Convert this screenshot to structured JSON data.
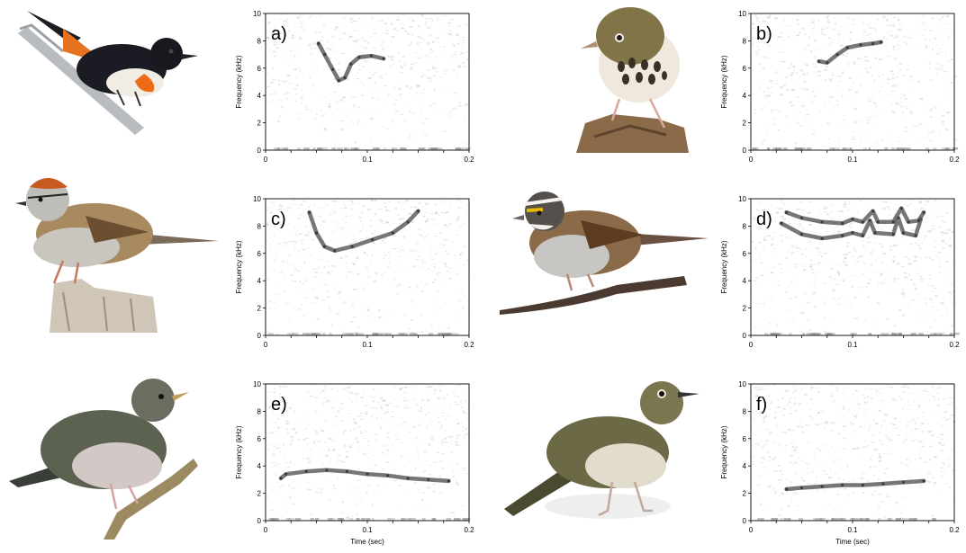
{
  "figure": {
    "panels": [
      {
        "letter": "a)",
        "bird": "american-redstart",
        "x_label": "",
        "y_label": "Frequency (kHz)"
      },
      {
        "letter": "b)",
        "bird": "ovenbird",
        "x_label": "",
        "y_label": "Frequency (kHz)"
      },
      {
        "letter": "c)",
        "bird": "chipping-sparrow",
        "x_label": "",
        "y_label": "Frequency (kHz)"
      },
      {
        "letter": "d)",
        "bird": "white-throated-sparrow",
        "x_label": "",
        "y_label": "Frequency (kHz)"
      },
      {
        "letter": "e)",
        "bird": "gray-cheeked-thrush",
        "x_label": "Time (sec)",
        "y_label": "Frequency (kHz)"
      },
      {
        "letter": "f)",
        "bird": "swainsons-thrush",
        "x_label": "Time (sec)",
        "y_label": "Frequency (kHz)"
      }
    ],
    "colors": {
      "background": "#ffffff",
      "trace": "#555555",
      "noise": "#bdbdbd"
    }
  },
  "chart_data": [
    {
      "type": "scatter",
      "title": "a)",
      "xlabel": "",
      "ylabel": "Frequency (kHz)",
      "xlim": [
        0,
        0.2
      ],
      "ylim": [
        0,
        10
      ],
      "x_ticks": [
        "0",
        "0.1",
        "0.2"
      ],
      "y_ticks": [
        "0",
        "2",
        "4",
        "6",
        "8",
        "10"
      ],
      "series": [
        {
          "values": [
            [
              0.052,
              7.8
            ],
            [
              0.058,
              7.0
            ],
            [
              0.066,
              5.9
            ],
            [
              0.072,
              5.1
            ],
            [
              0.078,
              5.3
            ],
            [
              0.084,
              6.3
            ],
            [
              0.092,
              6.8
            ],
            [
              0.104,
              6.9
            ],
            [
              0.116,
              6.7
            ]
          ]
        }
      ]
    },
    {
      "type": "scatter",
      "title": "b)",
      "xlabel": "",
      "ylabel": "Frequency (kHz)",
      "xlim": [
        0,
        0.2
      ],
      "ylim": [
        0,
        10
      ],
      "x_ticks": [
        "0",
        "0.1",
        "0.2"
      ],
      "y_ticks": [
        "0",
        "2",
        "4",
        "6",
        "8",
        "10"
      ],
      "series": [
        {
          "values": [
            [
              0.067,
              6.5
            ],
            [
              0.075,
              6.4
            ],
            [
              0.085,
              7.0
            ],
            [
              0.095,
              7.5
            ],
            [
              0.108,
              7.7
            ],
            [
              0.12,
              7.8
            ],
            [
              0.128,
              7.9
            ]
          ]
        }
      ]
    },
    {
      "type": "scatter",
      "title": "c)",
      "xlabel": "",
      "ylabel": "Frequency (kHz)",
      "xlim": [
        0,
        0.2
      ],
      "ylim": [
        0,
        10
      ],
      "x_ticks": [
        "0",
        "0.1",
        "0.2"
      ],
      "y_ticks": [
        "0",
        "2",
        "4",
        "6",
        "8",
        "10"
      ],
      "series": [
        {
          "values": [
            [
              0.043,
              9.0
            ],
            [
              0.05,
              7.5
            ],
            [
              0.058,
              6.5
            ],
            [
              0.068,
              6.2
            ],
            [
              0.085,
              6.5
            ],
            [
              0.105,
              7.0
            ],
            [
              0.125,
              7.5
            ],
            [
              0.14,
              8.3
            ],
            [
              0.15,
              9.1
            ]
          ]
        }
      ]
    },
    {
      "type": "scatter",
      "title": "d)",
      "xlabel": "",
      "ylabel": "Frequency (kHz)",
      "xlim": [
        0,
        0.2
      ],
      "ylim": [
        0,
        10
      ],
      "x_ticks": [
        "0",
        "0.1",
        "0.2"
      ],
      "y_ticks": [
        "0",
        "2",
        "4",
        "6",
        "8",
        "10"
      ],
      "series": [
        {
          "values": [
            [
              0.03,
              8.2
            ],
            [
              0.05,
              7.4
            ],
            [
              0.07,
              7.1
            ],
            [
              0.09,
              7.3
            ],
            [
              0.1,
              7.5
            ],
            [
              0.11,
              7.3
            ],
            [
              0.117,
              8.4
            ],
            [
              0.122,
              7.5
            ],
            [
              0.14,
              7.4
            ],
            [
              0.145,
              8.6
            ],
            [
              0.15,
              7.5
            ],
            [
              0.162,
              7.3
            ],
            [
              0.167,
              8.5
            ]
          ]
        },
        {
          "values": [
            [
              0.035,
              9.0
            ],
            [
              0.05,
              8.6
            ],
            [
              0.07,
              8.3
            ],
            [
              0.09,
              8.2
            ],
            [
              0.1,
              8.5
            ],
            [
              0.11,
              8.3
            ],
            [
              0.12,
              9.1
            ],
            [
              0.125,
              8.3
            ],
            [
              0.14,
              8.3
            ],
            [
              0.148,
              9.3
            ],
            [
              0.155,
              8.3
            ],
            [
              0.165,
              8.4
            ],
            [
              0.17,
              9.0
            ]
          ]
        }
      ]
    },
    {
      "type": "scatter",
      "title": "e)",
      "xlabel": "Time (sec)",
      "ylabel": "Frequency (kHz)",
      "xlim": [
        0,
        0.2
      ],
      "ylim": [
        0,
        10
      ],
      "x_ticks": [
        "0",
        "0.1",
        "0.2"
      ],
      "y_ticks": [
        "0",
        "2",
        "4",
        "6",
        "8",
        "10"
      ],
      "series": [
        {
          "values": [
            [
              0.015,
              3.1
            ],
            [
              0.02,
              3.4
            ],
            [
              0.04,
              3.6
            ],
            [
              0.06,
              3.7
            ],
            [
              0.08,
              3.6
            ],
            [
              0.1,
              3.4
            ],
            [
              0.12,
              3.3
            ],
            [
              0.14,
              3.1
            ],
            [
              0.16,
              3.0
            ],
            [
              0.18,
              2.9
            ]
          ]
        }
      ]
    },
    {
      "type": "scatter",
      "title": "f)",
      "xlabel": "Time (sec)",
      "ylabel": "Frequency (kHz)",
      "xlim": [
        0,
        0.2
      ],
      "ylim": [
        0,
        10
      ],
      "x_ticks": [
        "0",
        "0.1",
        "0.2"
      ],
      "y_ticks": [
        "0",
        "2",
        "4",
        "6",
        "8",
        "10"
      ],
      "series": [
        {
          "values": [
            [
              0.035,
              2.3
            ],
            [
              0.05,
              2.4
            ],
            [
              0.07,
              2.5
            ],
            [
              0.09,
              2.6
            ],
            [
              0.11,
              2.6
            ],
            [
              0.13,
              2.7
            ],
            [
              0.15,
              2.8
            ],
            [
              0.17,
              2.9
            ]
          ]
        }
      ]
    }
  ]
}
